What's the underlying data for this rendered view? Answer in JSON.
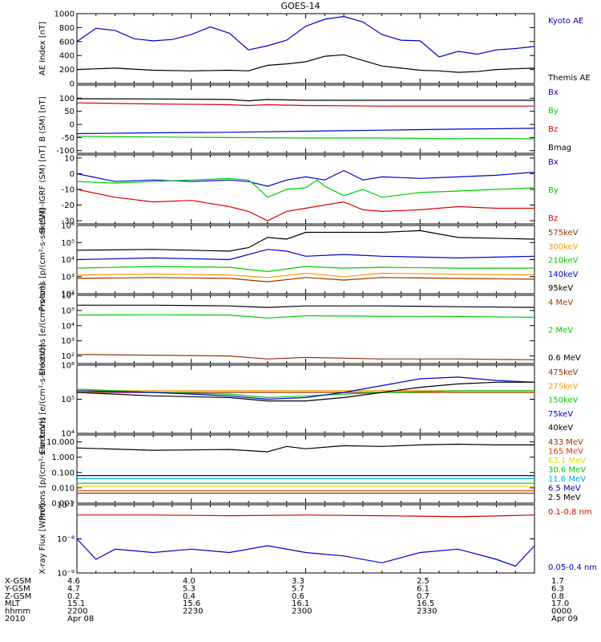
{
  "title": "GOES-14",
  "chart_data": [
    {
      "type": "line",
      "ylabel": "AE Index [nT]",
      "ylim": [
        0,
        1000
      ],
      "yticks": [
        0,
        200,
        400,
        600,
        800,
        1000
      ],
      "ytick_labels": [
        "0",
        "200",
        "400",
        "600",
        "800",
        "1000"
      ],
      "x_range_minutes": [
        0,
        120
      ],
      "series": [
        {
          "name": "Kyoto AE",
          "color": "#0000cc",
          "x": [
            0,
            5,
            10,
            15,
            20,
            25,
            30,
            35,
            40,
            45,
            50,
            55,
            60,
            65,
            70,
            75,
            80,
            85,
            90,
            95,
            100,
            105,
            110,
            115,
            120
          ],
          "values": [
            600,
            790,
            760,
            640,
            610,
            630,
            700,
            810,
            720,
            480,
            540,
            620,
            820,
            920,
            960,
            880,
            700,
            620,
            610,
            380,
            460,
            420,
            480,
            500,
            530
          ]
        },
        {
          "name": "Themis AE",
          "color": "#000000",
          "x": [
            0,
            10,
            20,
            30,
            40,
            45,
            50,
            55,
            60,
            65,
            70,
            75,
            80,
            85,
            90,
            95,
            100,
            105,
            110,
            115,
            120
          ],
          "values": [
            200,
            220,
            190,
            180,
            190,
            180,
            260,
            280,
            310,
            390,
            410,
            330,
            250,
            220,
            190,
            180,
            160,
            170,
            200,
            210,
            220
          ]
        }
      ]
    },
    {
      "type": "line",
      "ylabel": "B (SM) [nT]",
      "ylim": [
        -110,
        150
      ],
      "yticks": [
        -100,
        -50,
        0,
        50,
        100
      ],
      "ytick_labels": [
        "-100",
        "-50",
        "0",
        "50",
        "100"
      ],
      "series": [
        {
          "name": "Bx",
          "color": "#0000cc",
          "x": [
            0,
            20,
            40,
            60,
            80,
            100,
            120
          ],
          "values": [
            -35,
            -32,
            -30,
            -26,
            -22,
            -18,
            -15
          ]
        },
        {
          "name": "By",
          "color": "#00cc00",
          "x": [
            0,
            20,
            40,
            60,
            80,
            100,
            120
          ],
          "values": [
            -45,
            -48,
            -50,
            -52,
            -52,
            -54,
            -55
          ]
        },
        {
          "name": "Bz",
          "color": "#dd0000",
          "x": [
            0,
            20,
            40,
            45,
            50,
            60,
            80,
            100,
            120
          ],
          "values": [
            82,
            78,
            75,
            72,
            75,
            72,
            70,
            70,
            70
          ]
        },
        {
          "name": "Bmag",
          "color": "#000000",
          "x": [
            0,
            20,
            40,
            45,
            50,
            60,
            80,
            100,
            120
          ],
          "values": [
            98,
            97,
            95,
            90,
            95,
            92,
            92,
            92,
            92
          ]
        }
      ]
    },
    {
      "type": "line",
      "ylabel": "B (SM)-IGRF (SM) [nT]",
      "ylim": [
        -32,
        12
      ],
      "yticks": [
        -30,
        -20,
        -10,
        0,
        10
      ],
      "ytick_labels": [
        "-30",
        "-20",
        "-10",
        "0",
        "10"
      ],
      "series": [
        {
          "name": "Bx",
          "color": "#0000cc",
          "x": [
            0,
            10,
            20,
            30,
            40,
            45,
            50,
            55,
            60,
            65,
            70,
            75,
            80,
            90,
            100,
            110,
            120
          ],
          "values": [
            0,
            -5,
            -4,
            -5,
            -4,
            -5,
            -8,
            -4,
            -2,
            -4,
            2,
            -4,
            -2,
            -3,
            -2,
            -1,
            1
          ]
        },
        {
          "name": "By",
          "color": "#00cc00",
          "x": [
            0,
            10,
            20,
            30,
            40,
            45,
            47,
            50,
            55,
            60,
            63,
            65,
            70,
            75,
            80,
            90,
            100,
            110,
            120
          ],
          "values": [
            -5,
            -6,
            -5,
            -4,
            -3,
            -4,
            -8,
            -15,
            -10,
            -9,
            -4,
            -8,
            -14,
            -10,
            -15,
            -12,
            -11,
            -10,
            -9
          ]
        },
        {
          "name": "Bz",
          "color": "#dd0000",
          "x": [
            0,
            10,
            20,
            30,
            40,
            45,
            50,
            55,
            60,
            65,
            70,
            75,
            80,
            90,
            100,
            110,
            120
          ],
          "values": [
            -10,
            -15,
            -18,
            -17,
            -21,
            -24,
            -30,
            -24,
            -22,
            -20,
            -18,
            -23,
            -24,
            -23,
            -21,
            -22,
            -22
          ]
        }
      ]
    },
    {
      "type": "line",
      "log": true,
      "ylabel": "Protons [p/(cm²-s-sr-keV)]",
      "ylim_log10": [
        2,
        6
      ],
      "yticks_log10": [
        2,
        3,
        4,
        5,
        6
      ],
      "ytick_labels": [
        "10²",
        "10³",
        "10⁴",
        "10⁵",
        "10⁶"
      ],
      "series": [
        {
          "name": "575keV",
          "color": "#993300",
          "x": [
            0,
            20,
            40,
            50,
            60,
            70,
            80,
            100,
            120
          ],
          "values_log10": [
            2.9,
            2.95,
            2.9,
            2.7,
            2.95,
            2.8,
            2.95,
            2.9,
            2.85
          ]
        },
        {
          "name": "300keV",
          "color": "#ff9900",
          "x": [
            0,
            20,
            40,
            50,
            60,
            70,
            80,
            100,
            120
          ],
          "values_log10": [
            3.1,
            3.15,
            3.1,
            2.95,
            3.2,
            3.0,
            3.2,
            3.15,
            3.1
          ]
        },
        {
          "name": "210keV",
          "color": "#00cc00",
          "x": [
            0,
            20,
            40,
            50,
            60,
            70,
            80,
            100,
            120
          ],
          "values_log10": [
            3.5,
            3.6,
            3.55,
            3.3,
            3.6,
            3.5,
            3.55,
            3.5,
            3.5
          ]
        },
        {
          "name": "140keV",
          "color": "#0000cc",
          "x": [
            0,
            20,
            40,
            50,
            55,
            60,
            70,
            80,
            100,
            120
          ],
          "values_log10": [
            4.0,
            4.1,
            4.0,
            4.6,
            4.5,
            4.2,
            4.3,
            4.2,
            4.1,
            4.2
          ]
        },
        {
          "name": "95keV",
          "color": "#000000",
          "x": [
            0,
            20,
            40,
            45,
            50,
            55,
            60,
            70,
            80,
            90,
            100,
            120
          ],
          "values_log10": [
            4.55,
            4.6,
            4.5,
            4.7,
            5.3,
            5.2,
            5.6,
            5.6,
            5.6,
            5.7,
            5.3,
            5.2
          ]
        }
      ]
    },
    {
      "type": "line",
      "log": true,
      "ylabel": "Electrons [e/(cm²-s-sr)]",
      "ylim_log10": [
        1.5,
        6
      ],
      "yticks_log10": [
        2,
        3,
        4,
        5,
        6
      ],
      "ytick_labels": [
        "10²",
        "10³",
        "10⁴",
        "10⁵",
        "10⁶"
      ],
      "series": [
        {
          "name": "4 MeV",
          "color": "#993300",
          "x": [
            0,
            20,
            40,
            50,
            60,
            80,
            100,
            120
          ],
          "values_log10": [
            2.1,
            2.05,
            2.0,
            1.8,
            1.9,
            1.8,
            1.8,
            1.75
          ]
        },
        {
          "name": "2 MeV",
          "color": "#00cc00",
          "x": [
            0,
            20,
            40,
            50,
            60,
            80,
            100,
            120
          ],
          "values_log10": [
            4.7,
            4.72,
            4.7,
            4.5,
            4.65,
            4.62,
            4.6,
            4.55
          ]
        },
        {
          "name": "0.6 MeV",
          "color": "#000000",
          "x": [
            0,
            20,
            40,
            50,
            60,
            80,
            100,
            120
          ],
          "values_log10": [
            5.35,
            5.35,
            5.3,
            5.2,
            5.3,
            5.3,
            5.25,
            5.2
          ]
        }
      ]
    },
    {
      "type": "line",
      "log": true,
      "ylabel": "Electrons [e/(cm²-s-sr-keV)]",
      "ylim_log10": [
        4,
        6
      ],
      "yticks_log10": [
        4,
        5,
        6
      ],
      "ytick_labels": [
        "10⁴",
        "10⁵",
        "10⁶"
      ],
      "series": [
        {
          "name": "475keV",
          "color": "#993300",
          "x": [
            0,
            120
          ],
          "values_log10": [
            5.2,
            5.2
          ]
        },
        {
          "name": "275keV",
          "color": "#ff9900",
          "x": [
            0,
            120
          ],
          "values_log10": [
            5.25,
            5.25
          ]
        },
        {
          "name": "150keV",
          "color": "#00cc00",
          "x": [
            0,
            20,
            40,
            50,
            60,
            70,
            80,
            100,
            120
          ],
          "values_log10": [
            5.3,
            5.2,
            5.15,
            5.05,
            5.1,
            5.15,
            5.2,
            5.25,
            5.25
          ]
        },
        {
          "name": "75keV",
          "color": "#0000cc",
          "x": [
            0,
            20,
            40,
            50,
            60,
            70,
            80,
            90,
            100,
            110,
            120
          ],
          "values_log10": [
            5.25,
            5.2,
            5.1,
            5.0,
            5.05,
            5.2,
            5.4,
            5.6,
            5.65,
            5.55,
            5.5
          ]
        },
        {
          "name": "40keV",
          "color": "#000000",
          "x": [
            0,
            20,
            40,
            50,
            60,
            70,
            80,
            90,
            100,
            110,
            120
          ],
          "values_log10": [
            5.2,
            5.1,
            5.05,
            4.95,
            4.95,
            5.05,
            5.2,
            5.35,
            5.45,
            5.5,
            5.5
          ]
        }
      ]
    },
    {
      "type": "line",
      "log": true,
      "ylabel": "Protons [p/(cm²-s-sr-keV)]",
      "ylim_log10": [
        -3,
        1.45
      ],
      "yticks_log10": [
        -3,
        -2,
        -1,
        0,
        1
      ],
      "ytick_labels": [
        "0.001",
        "0.010",
        "0.100",
        "1.000",
        "10.000"
      ],
      "series": [
        {
          "name": "433 MeV",
          "color": "#993300",
          "x": [
            0,
            120
          ],
          "values_log10": [
            -2.35,
            -2.35
          ]
        },
        {
          "name": "165 MeV",
          "color": "#dd3300",
          "x": [
            0,
            120
          ],
          "values_log10": [
            -2.2,
            -2.2
          ]
        },
        {
          "name": "63.1 MeV",
          "color": "#dddd00",
          "x": [
            0,
            120
          ],
          "values_log10": [
            -1.9,
            -1.9
          ]
        },
        {
          "name": "30.6 MeV",
          "color": "#00cc00",
          "x": [
            0,
            120
          ],
          "values_log10": [
            -1.7,
            -1.7
          ]
        },
        {
          "name": "11.6 MeV",
          "color": "#00aadd",
          "x": [
            0,
            120
          ],
          "values_log10": [
            -1.4,
            -1.4
          ]
        },
        {
          "name": "6.5 MeV",
          "color": "#000099",
          "x": [
            0,
            120
          ],
          "values_log10": [
            -1.2,
            -1.2
          ]
        },
        {
          "name": "2.5 MeV",
          "color": "#000000",
          "x": [
            0,
            20,
            40,
            50,
            55,
            60,
            70,
            80,
            90,
            100,
            110,
            120
          ],
          "values_log10": [
            0.6,
            0.45,
            0.5,
            0.35,
            0.7,
            0.55,
            0.75,
            0.7,
            0.8,
            0.85,
            0.8,
            0.8
          ]
        }
      ]
    },
    {
      "type": "line",
      "log": true,
      "ylabel": "X-ray Flux [W/m²]",
      "ylim_log10": [
        -9,
        -7
      ],
      "yticks_log10": [
        -9,
        -8,
        -7
      ],
      "ytick_labels": [
        "10⁻⁹",
        "10⁻⁸",
        "10⁻⁷"
      ],
      "series": [
        {
          "name": "0.1-0.8 nm",
          "color": "#dd0000",
          "x": [
            0,
            20,
            40,
            60,
            80,
            100,
            120
          ],
          "values_log10": [
            -7.3,
            -7.3,
            -7.32,
            -7.3,
            -7.32,
            -7.35,
            -7.3
          ]
        },
        {
          "name": "0.05-0.4 nm",
          "color": "#0000cc",
          "x": [
            0,
            5,
            10,
            20,
            30,
            40,
            50,
            60,
            70,
            80,
            90,
            100,
            110,
            115,
            120
          ],
          "values_log10": [
            -8.0,
            -8.6,
            -8.3,
            -8.4,
            -8.3,
            -8.4,
            -8.2,
            -8.4,
            -8.5,
            -8.7,
            -8.4,
            -8.3,
            -8.6,
            -8.8,
            -8.2
          ]
        }
      ]
    }
  ],
  "footer": {
    "row_labels": [
      "X-GSM",
      "Y-GSM",
      "Z-GSM",
      "MLT",
      "hhmm",
      "2010"
    ],
    "columns": [
      [
        "4.6",
        "4.7",
        "0.2",
        "15.1",
        "2200",
        "Apr 08"
      ],
      [
        "4.0",
        "5.3",
        "0.4",
        "15.6",
        "2230",
        ""
      ],
      [
        "3.3",
        "5.7",
        "0.6",
        "16.1",
        "2300",
        ""
      ],
      [
        "2.5",
        "6.1",
        "0.7",
        "16.5",
        "2330",
        ""
      ],
      [
        "1.7",
        "6.3",
        "0.8",
        "17.0",
        "0000",
        "Apr 09"
      ]
    ]
  }
}
